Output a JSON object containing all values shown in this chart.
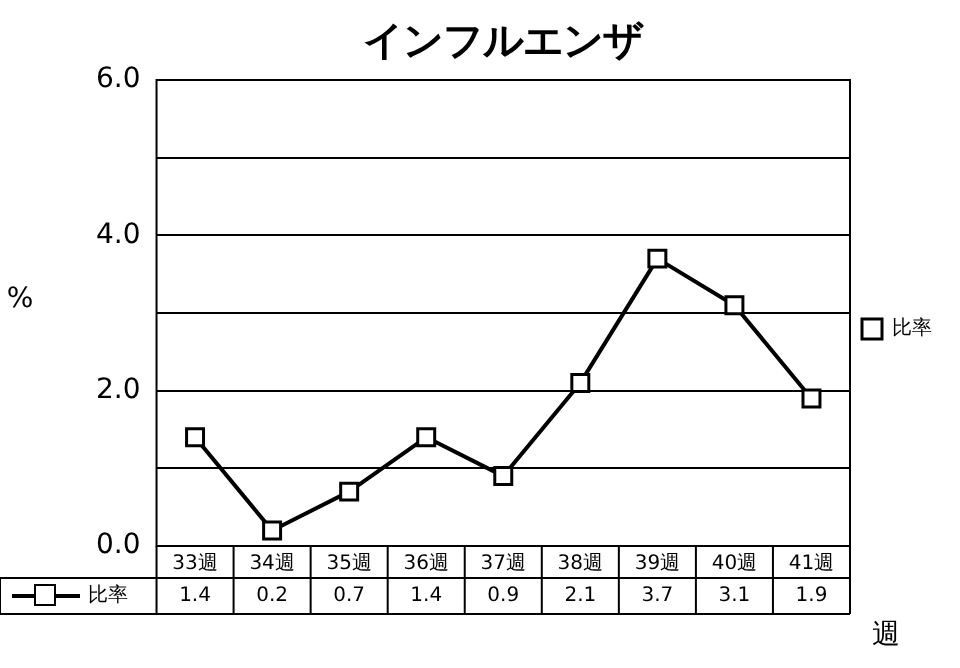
{
  "chart_data": {
    "type": "line",
    "title": "インフルエンザ",
    "xlabel": "週",
    "ylabel": "%",
    "categories": [
      "33週",
      "34週",
      "35週",
      "36週",
      "37週",
      "38週",
      "39週",
      "40週",
      "41週"
    ],
    "series": [
      {
        "name": "比率",
        "color": "#000000",
        "values": [
          1.4,
          0.2,
          0.7,
          1.4,
          0.9,
          2.1,
          3.7,
          3.1,
          1.9
        ]
      }
    ],
    "ylim": [
      0,
      6
    ],
    "yticks": [
      {
        "value": 0,
        "label": "0.0"
      },
      {
        "value": 1,
        "label": null
      },
      {
        "value": 2,
        "label": "2.0"
      },
      {
        "value": 3,
        "label": null
      },
      {
        "value": 4,
        "label": "4.0"
      },
      {
        "value": 5,
        "label": null
      },
      {
        "value": 6,
        "label": "6.0"
      }
    ],
    "grid": "y",
    "legend": "right",
    "marker": "square",
    "line_style": "solid",
    "data_labels": true
  }
}
